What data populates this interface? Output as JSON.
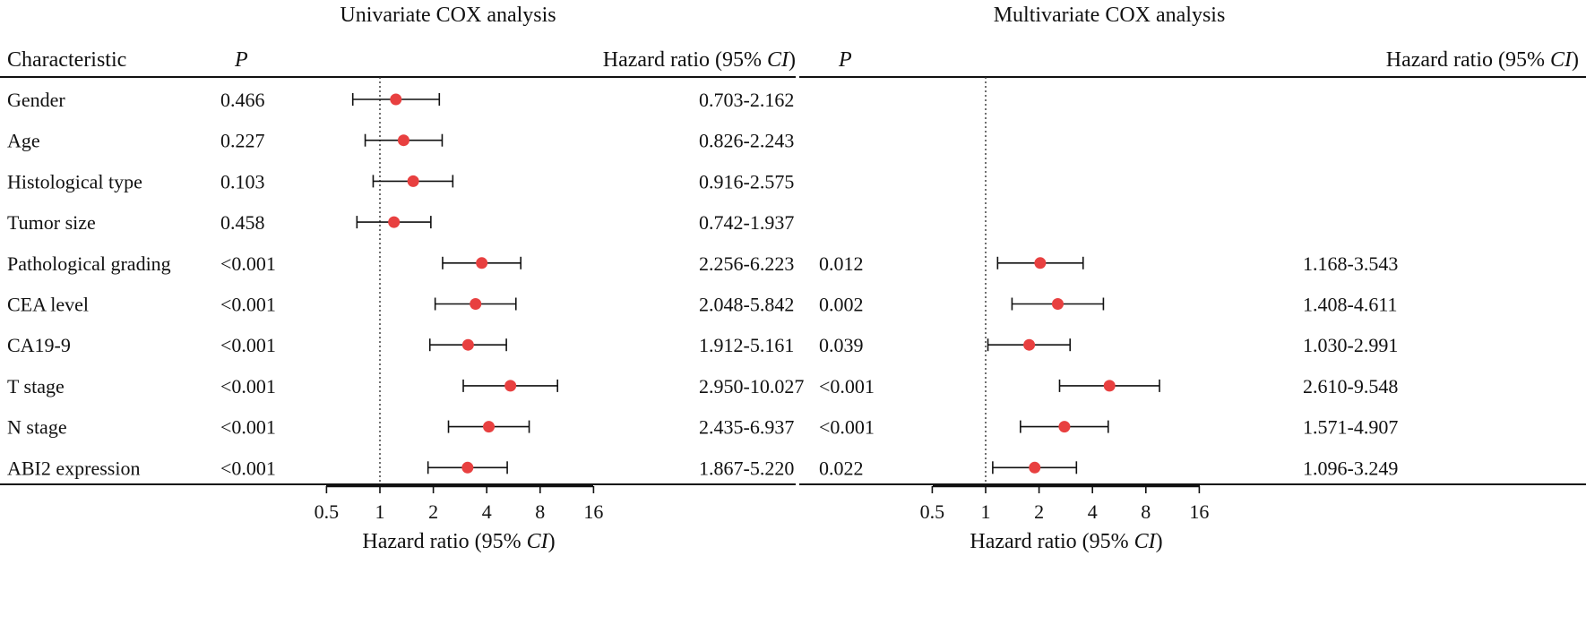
{
  "panels": {
    "left": {
      "title": "Univariate COX analysis",
      "col_characteristic": "Characteristic",
      "col_p": "P",
      "col_hr_prefix": "Hazard ratio (95% ",
      "col_hr_ci": "CI",
      "col_hr_suffix": ")",
      "xlabel_prefix": "Hazard ratio (95% ",
      "xlabel_ci": "CI",
      "xlabel_suffix": ")"
    },
    "right": {
      "title": "Multivariate COX analysis",
      "col_p": "P",
      "col_hr_prefix": "Hazard ratio (95% ",
      "col_hr_ci": "CI",
      "col_hr_suffix": ")",
      "xlabel_prefix": "Hazard ratio (95% ",
      "xlabel_ci": "CI",
      "xlabel_suffix": ")"
    }
  },
  "chart_data": [
    {
      "type": "forest",
      "title": "Univariate COX analysis",
      "xlabel": "Hazard ratio (95% CI)",
      "xscale": "log2",
      "xticks": [
        0.5,
        1,
        2,
        4,
        8,
        16
      ],
      "xtick_labels": [
        "0.5",
        "1",
        "2",
        "4",
        "8",
        "16"
      ],
      "reference_line": 1,
      "marker_color": "#e84040",
      "rows": [
        {
          "characteristic": "Gender",
          "p": "0.466",
          "hr": 1.23,
          "lower": 0.703,
          "upper": 2.162,
          "ci_text": "0.703-2.162"
        },
        {
          "characteristic": "Age",
          "p": "0.227",
          "hr": 1.36,
          "lower": 0.826,
          "upper": 2.243,
          "ci_text": "0.826-2.243"
        },
        {
          "characteristic": "Histological type",
          "p": "0.103",
          "hr": 1.54,
          "lower": 0.916,
          "upper": 2.575,
          "ci_text": "0.916-2.575"
        },
        {
          "characteristic": "Tumor size",
          "p": "0.458",
          "hr": 1.2,
          "lower": 0.742,
          "upper": 1.937,
          "ci_text": "0.742-1.937"
        },
        {
          "characteristic": "Pathological grading",
          "p": "<0.001",
          "hr": 3.75,
          "lower": 2.256,
          "upper": 6.223,
          "ci_text": "2.256-6.223"
        },
        {
          "characteristic": "CEA level",
          "p": "<0.001",
          "hr": 3.46,
          "lower": 2.048,
          "upper": 5.842,
          "ci_text": "2.048-5.842"
        },
        {
          "characteristic": "CA19-9",
          "p": "<0.001",
          "hr": 3.14,
          "lower": 1.912,
          "upper": 5.161,
          "ci_text": "1.912-5.161"
        },
        {
          "characteristic": "T stage",
          "p": "<0.001",
          "hr": 5.44,
          "lower": 2.95,
          "upper": 10.027,
          "ci_text": "2.950-10.027"
        },
        {
          "characteristic": "N stage",
          "p": "<0.001",
          "hr": 4.11,
          "lower": 2.435,
          "upper": 6.937,
          "ci_text": "2.435-6.937"
        },
        {
          "characteristic": "ABI2 expression",
          "p": "<0.001",
          "hr": 3.12,
          "lower": 1.867,
          "upper": 5.22,
          "ci_text": "1.867-5.220"
        }
      ]
    },
    {
      "type": "forest",
      "title": "Multivariate COX analysis",
      "xlabel": "Hazard ratio (95% CI)",
      "xscale": "log2",
      "xticks": [
        0.5,
        1,
        2,
        4,
        8,
        16
      ],
      "xtick_labels": [
        "0.5",
        "1",
        "2",
        "4",
        "8",
        "16"
      ],
      "reference_line": 1,
      "marker_color": "#e84040",
      "rows": [
        {
          "characteristic": "Gender",
          "p": "",
          "hr": null,
          "lower": null,
          "upper": null,
          "ci_text": ""
        },
        {
          "characteristic": "Age",
          "p": "",
          "hr": null,
          "lower": null,
          "upper": null,
          "ci_text": ""
        },
        {
          "characteristic": "Histological type",
          "p": "",
          "hr": null,
          "lower": null,
          "upper": null,
          "ci_text": ""
        },
        {
          "characteristic": "Tumor size",
          "p": "",
          "hr": null,
          "lower": null,
          "upper": null,
          "ci_text": ""
        },
        {
          "characteristic": "Pathological grading",
          "p": "0.012",
          "hr": 2.03,
          "lower": 1.168,
          "upper": 3.543,
          "ci_text": "1.168-3.543"
        },
        {
          "characteristic": "CEA level",
          "p": "0.002",
          "hr": 2.55,
          "lower": 1.408,
          "upper": 4.611,
          "ci_text": "1.408-4.611"
        },
        {
          "characteristic": "CA19-9",
          "p": "0.039",
          "hr": 1.76,
          "lower": 1.03,
          "upper": 2.991,
          "ci_text": "1.030-2.991"
        },
        {
          "characteristic": "T stage",
          "p": "<0.001",
          "hr": 4.99,
          "lower": 2.61,
          "upper": 9.548,
          "ci_text": "2.610-9.548"
        },
        {
          "characteristic": "N stage",
          "p": "<0.001",
          "hr": 2.78,
          "lower": 1.571,
          "upper": 4.907,
          "ci_text": "1.571-4.907"
        },
        {
          "characteristic": "ABI2 expression",
          "p": "0.022",
          "hr": 1.89,
          "lower": 1.096,
          "upper": 3.249,
          "ci_text": "1.096-3.249"
        }
      ]
    }
  ]
}
